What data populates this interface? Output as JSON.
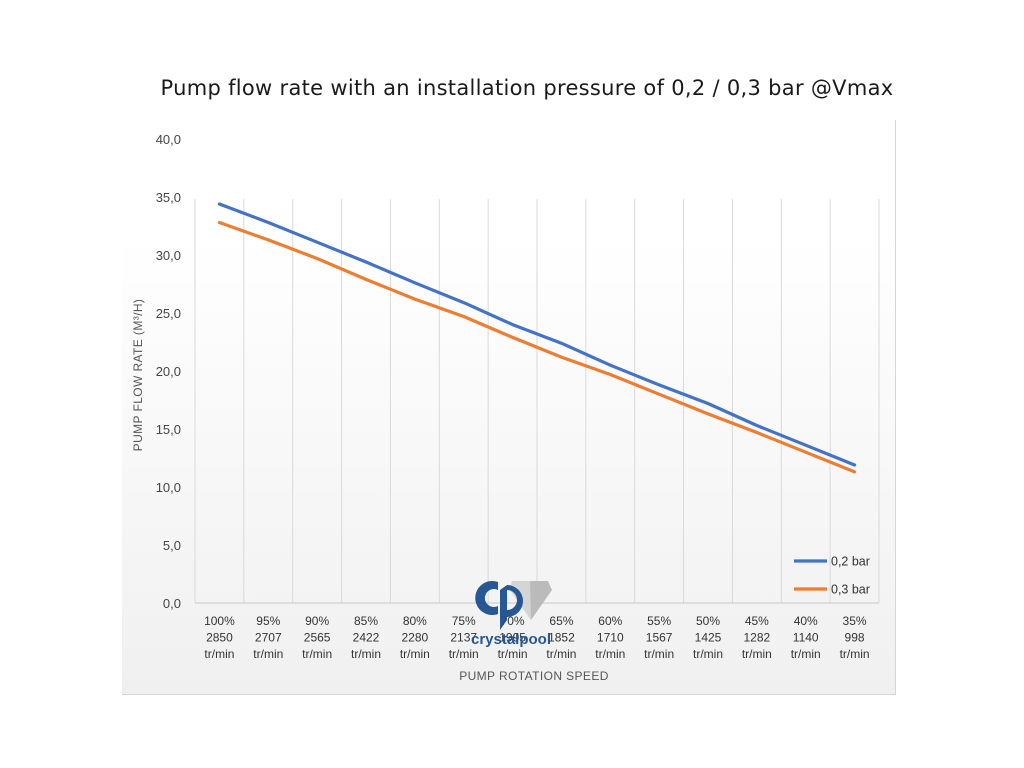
{
  "chart_data": {
    "type": "line",
    "title": "Pump flow rate with an installation pressure of 0,2 / 0,3 bar @Vmax",
    "xlabel": "PUMP ROTATION SPEED",
    "ylabel": "PUMP FLOW RATE (M³/H)",
    "ylim": [
      0,
      40
    ],
    "yticks": [
      "0,0",
      "5,0",
      "10,0",
      "15,0",
      "20,0",
      "25,0",
      "30,0",
      "35,0",
      "40,0"
    ],
    "ytick_values": [
      0,
      5,
      10,
      15,
      20,
      25,
      30,
      35,
      40
    ],
    "grid": "vertical",
    "legend_position": "bottom-right",
    "categories": [
      {
        "pct": "100%",
        "rpm": "2850",
        "unit": "tr/min"
      },
      {
        "pct": "95%",
        "rpm": "2707",
        "unit": "tr/min"
      },
      {
        "pct": "90%",
        "rpm": "2565",
        "unit": "tr/min"
      },
      {
        "pct": "85%",
        "rpm": "2422",
        "unit": "tr/min"
      },
      {
        "pct": "80%",
        "rpm": "2280",
        "unit": "tr/min"
      },
      {
        "pct": "75%",
        "rpm": "2137",
        "unit": "tr/min"
      },
      {
        "pct": "70%",
        "rpm": "1995",
        "unit": "tr/min"
      },
      {
        "pct": "65%",
        "rpm": "1852",
        "unit": "tr/min"
      },
      {
        "pct": "60%",
        "rpm": "1710",
        "unit": "tr/min"
      },
      {
        "pct": "55%",
        "rpm": "1567",
        "unit": "tr/min"
      },
      {
        "pct": "50%",
        "rpm": "1425",
        "unit": "tr/min"
      },
      {
        "pct": "45%",
        "rpm": "1282",
        "unit": "tr/min"
      },
      {
        "pct": "40%",
        "rpm": "1140",
        "unit": "tr/min"
      },
      {
        "pct": "35%",
        "rpm": "998",
        "unit": "tr/min"
      }
    ],
    "series": [
      {
        "name": "0,2 bar",
        "color": "#4472c4",
        "values": [
          34.4,
          32.8,
          31.1,
          29.4,
          27.6,
          25.9,
          24.0,
          22.4,
          20.5,
          18.8,
          17.2,
          15.3,
          13.6,
          11.9
        ]
      },
      {
        "name": "0,3 bar",
        "color": "#ed7d31",
        "values": [
          32.8,
          31.3,
          29.7,
          27.9,
          26.2,
          24.7,
          22.9,
          21.2,
          19.7,
          18.0,
          16.3,
          14.7,
          13.0,
          11.3
        ]
      }
    ]
  },
  "watermark": {
    "brand": "crystalpool",
    "primary_color": "#1d4f8f",
    "secondary_color": "#b5b5b5"
  }
}
